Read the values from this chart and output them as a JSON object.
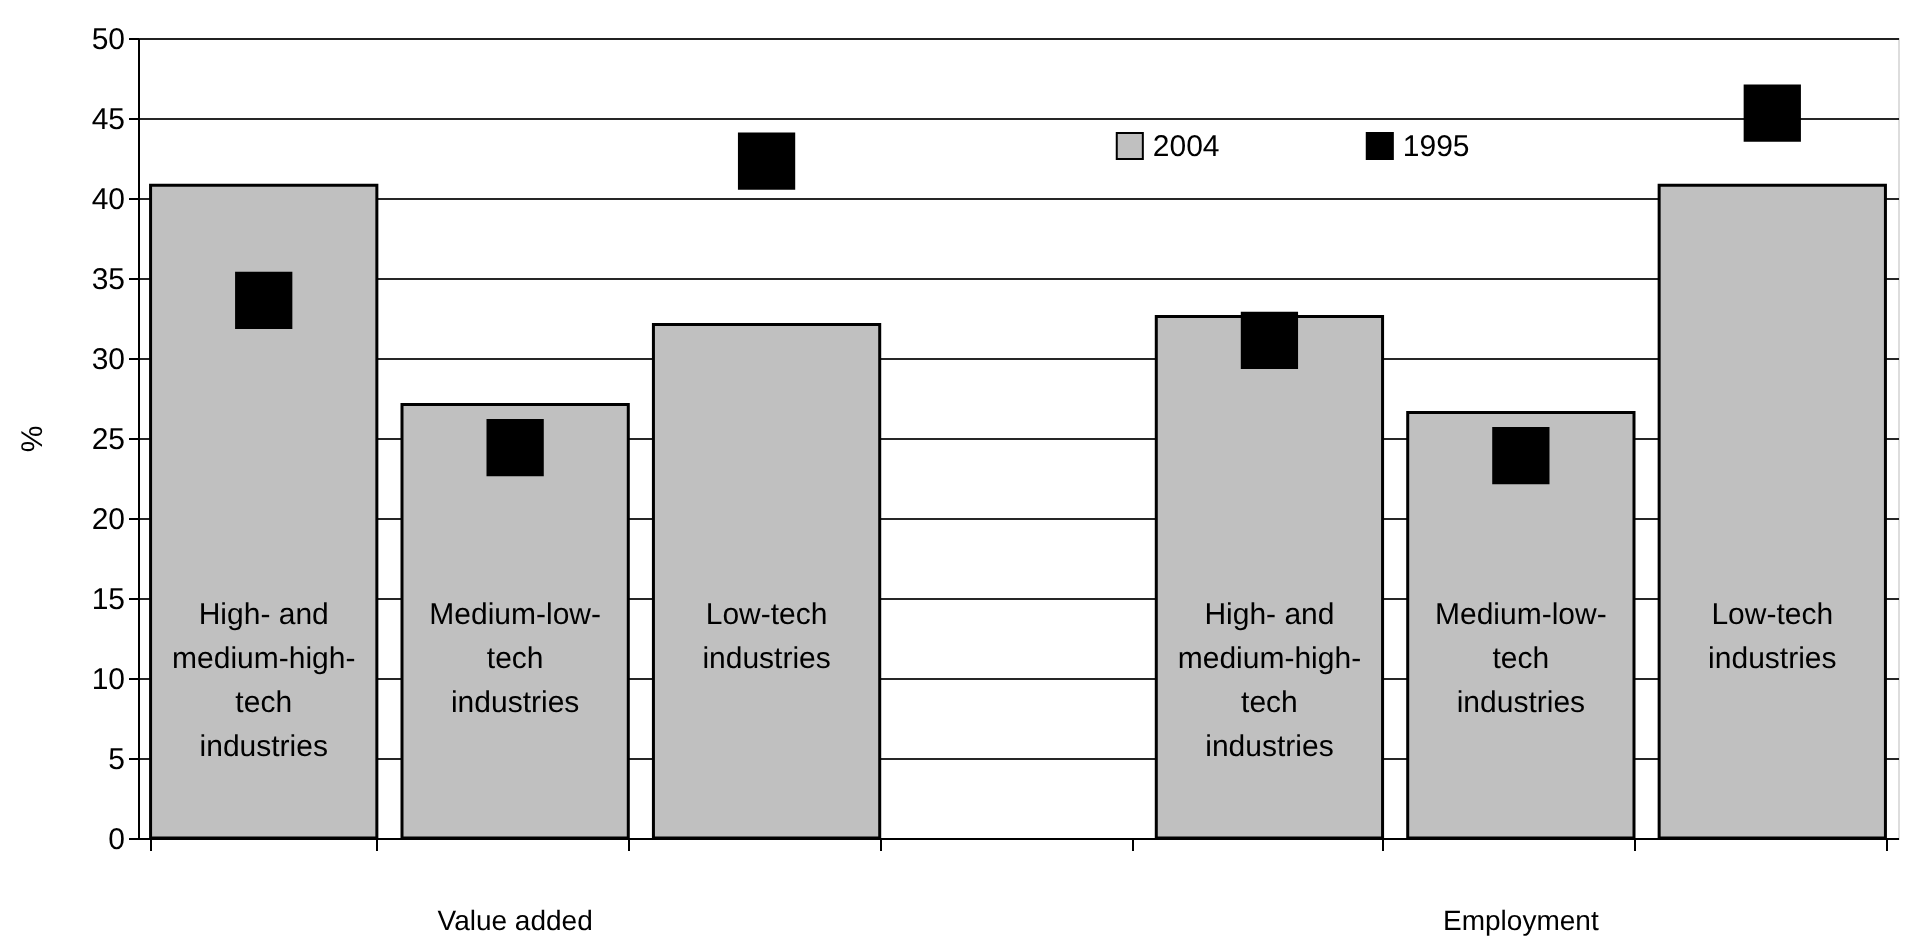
{
  "chart_data": {
    "type": "bar",
    "categories": [
      "High- and medium-high-tech industries",
      "Medium-low-tech industries",
      "Low-tech industries",
      null,
      "High- and medium-high-tech industries",
      "Medium-low-tech industries",
      "Low-tech industries"
    ],
    "ylabel": "%",
    "ylim": [
      0,
      50
    ],
    "yticks": [
      0,
      5,
      10,
      15,
      20,
      25,
      30,
      35,
      40,
      45,
      50
    ],
    "grid": "y",
    "legend": "top",
    "marker": "square",
    "annotations": [
      "Value added",
      "Employment"
    ],
    "series": [
      {
        "name": "2004",
        "color": "#c0c0c0",
        "values": [
          40.8,
          27.1,
          32.1,
          null,
          32.6,
          26.6,
          40.8
        ]
      },
      {
        "name": "1995",
        "type": "scatter",
        "color": "#000000",
        "values": [
          33.6,
          24.4,
          42.3,
          null,
          31.1,
          23.9,
          45.3
        ]
      }
    ]
  }
}
